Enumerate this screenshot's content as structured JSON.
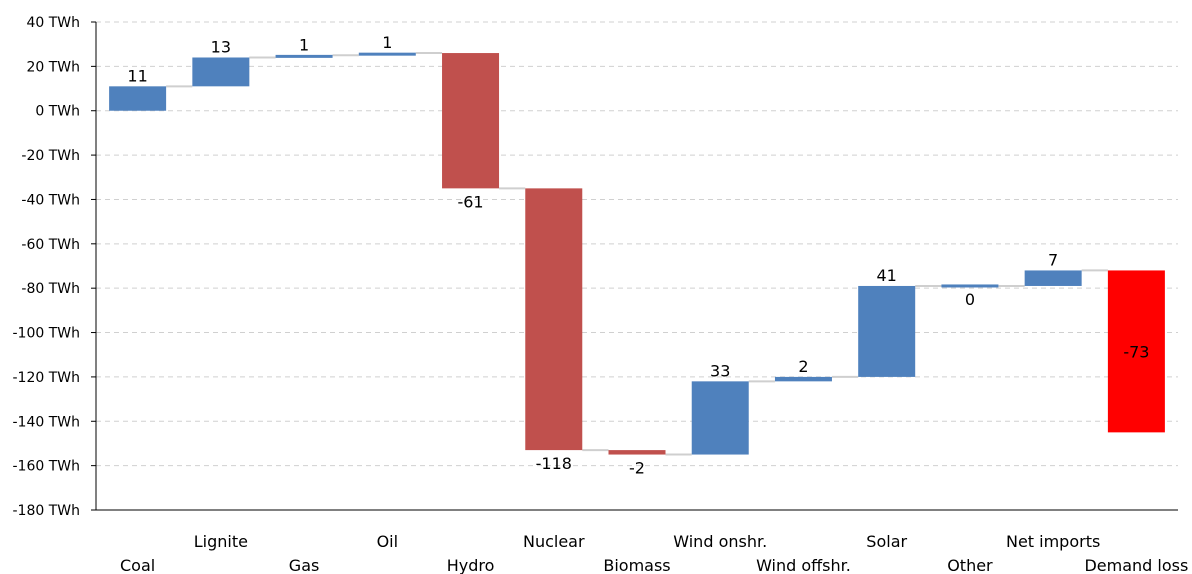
{
  "chart_data": {
    "type": "waterfall",
    "y_unit_suffix": " TWh",
    "ylim": [
      -180,
      40
    ],
    "ytick_step": 20,
    "grid": true,
    "categories": [
      "Coal",
      "Lignite",
      "Gas",
      "Oil",
      "Hydro",
      "Nuclear",
      "Biomass",
      "Wind onshr.",
      "Wind offshr.",
      "Solar",
      "Other",
      "Net imports",
      "Demand loss"
    ],
    "values": [
      11,
      13,
      1,
      1,
      -61,
      -118,
      -2,
      33,
      2,
      41,
      0,
      7,
      -73
    ],
    "value_labels": [
      "11",
      "13",
      "1",
      "1",
      "-61",
      "-118",
      "-2",
      "33",
      "2",
      "41",
      "0",
      "7",
      "-73"
    ],
    "colors": {
      "increase": "#4f81bd",
      "decrease": "#c0504d",
      "demand_loss": "#ff0000"
    }
  }
}
